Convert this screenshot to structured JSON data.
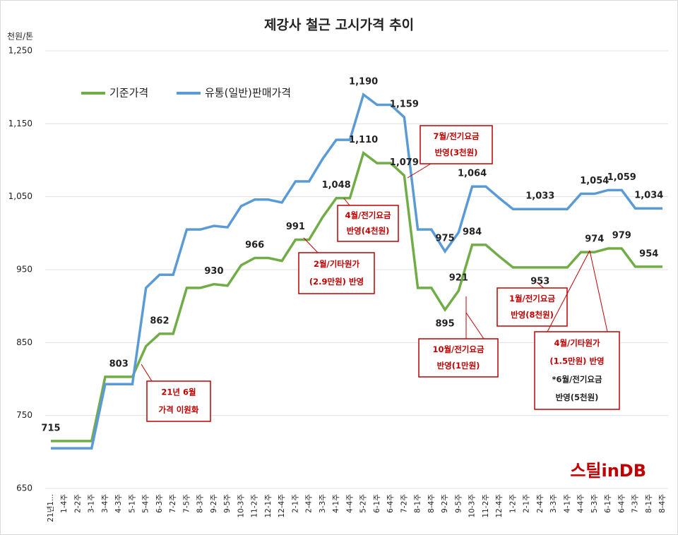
{
  "chart_data": {
    "type": "line",
    "title": "제강사 철근 고시가격 추이",
    "y_unit": "천원/톤",
    "logo": "스틸inDB",
    "categories": [
      "21년1...",
      "1-4주",
      "2-2주",
      "3-1주",
      "3-4주",
      "4-3주",
      "5-1주",
      "5-4주",
      "6-3주",
      "7-2주",
      "7-5주",
      "8-3주",
      "9-2주",
      "9-5주",
      "10-3주",
      "11-2주",
      "12-1주",
      "12-4주",
      "2-1주",
      "2-4주",
      "3-3주",
      "4-1주",
      "4-4주",
      "5-2주",
      "6-1주",
      "6-4주",
      "7-2주",
      "8-1주",
      "8-4주",
      "9-2주",
      "9-5주",
      "10-3주",
      "11-2주",
      "12-4주",
      "1-2주",
      "2-1주",
      "2-4주",
      "3-3주",
      "4-1주",
      "4-4주",
      "5-3주",
      "6-1주",
      "6-4주",
      "7-3주",
      "8-1주",
      "8-4주"
    ],
    "series": [
      {
        "name": "기준가격",
        "color": "#70ad47",
        "values": [
          715,
          715,
          715,
          715,
          803,
          803,
          803,
          845,
          862,
          862,
          925,
          925,
          930,
          928,
          956,
          966,
          966,
          962,
          991,
          991,
          1022,
          1048,
          1048,
          1110,
          1096,
          1096,
          1079,
          925,
          925,
          895,
          921,
          984,
          984,
          968,
          953,
          953,
          953,
          953,
          953,
          974,
          974,
          979,
          979,
          954,
          954,
          954
        ],
        "value_labels": [
          "715",
          null,
          null,
          null,
          null,
          "803",
          null,
          null,
          "862",
          null,
          null,
          null,
          "930",
          null,
          null,
          "966",
          null,
          null,
          "991",
          null,
          null,
          "1,048",
          null,
          "1,110",
          null,
          null,
          "1,079",
          null,
          null,
          "895",
          "921",
          "984",
          null,
          null,
          null,
          null,
          "953",
          null,
          null,
          null,
          "974",
          null,
          "979",
          null,
          "954",
          null
        ]
      },
      {
        "name": "유통(일반)판매가격",
        "color": "#5b9bd5",
        "values": [
          705,
          705,
          705,
          705,
          793,
          793,
          793,
          925,
          943,
          943,
          1005,
          1005,
          1010,
          1008,
          1037,
          1046,
          1046,
          1042,
          1071,
          1071,
          1102,
          1128,
          1128,
          1190,
          1176,
          1176,
          1159,
          1005,
          1005,
          975,
          1001,
          1064,
          1064,
          1048,
          1033,
          1033,
          1033,
          1033,
          1033,
          1054,
          1054,
          1059,
          1059,
          1034,
          1034,
          1034
        ],
        "value_labels": [
          null,
          null,
          null,
          null,
          null,
          null,
          null,
          null,
          null,
          null,
          null,
          null,
          null,
          null,
          null,
          null,
          null,
          null,
          null,
          null,
          null,
          null,
          null,
          "1,190",
          null,
          null,
          "1,159",
          null,
          null,
          "975",
          null,
          "1,064",
          null,
          null,
          null,
          null,
          "1,033",
          null,
          null,
          null,
          "1,054",
          null,
          "1,059",
          null,
          "1,034",
          null
        ]
      }
    ],
    "ylim": [
      650,
      1250
    ],
    "yticks": [
      650,
      750,
      850,
      {
        "value": 950,
        "label": "950"
      },
      {
        "value": 1050,
        "label": "1,050"
      },
      {
        "value": 1150,
        "label": "1,150"
      },
      {
        "value": 1250,
        "label": "1,250"
      }
    ],
    "grid": true,
    "annotations": [
      {
        "lines": [
          "21년 6월",
          "가격 이원화"
        ]
      },
      {
        "lines": [
          "2월/기타원가",
          "(2.9만원) 반영"
        ]
      },
      {
        "lines": [
          "4월/전기요금",
          "반영(4천원)"
        ]
      },
      {
        "lines": [
          "7월/전기요금",
          "반영(3천원)"
        ]
      },
      {
        "lines": [
          "10월/전기요금",
          "반영(1만원)"
        ]
      },
      {
        "lines": [
          "1월/전기요금",
          "반영(8천원)"
        ]
      },
      {
        "lines": [
          "4월/기타원가",
          "(1.5만원) 반영",
          "*6월/전기요금",
          "반영(5천원)"
        ]
      }
    ]
  }
}
